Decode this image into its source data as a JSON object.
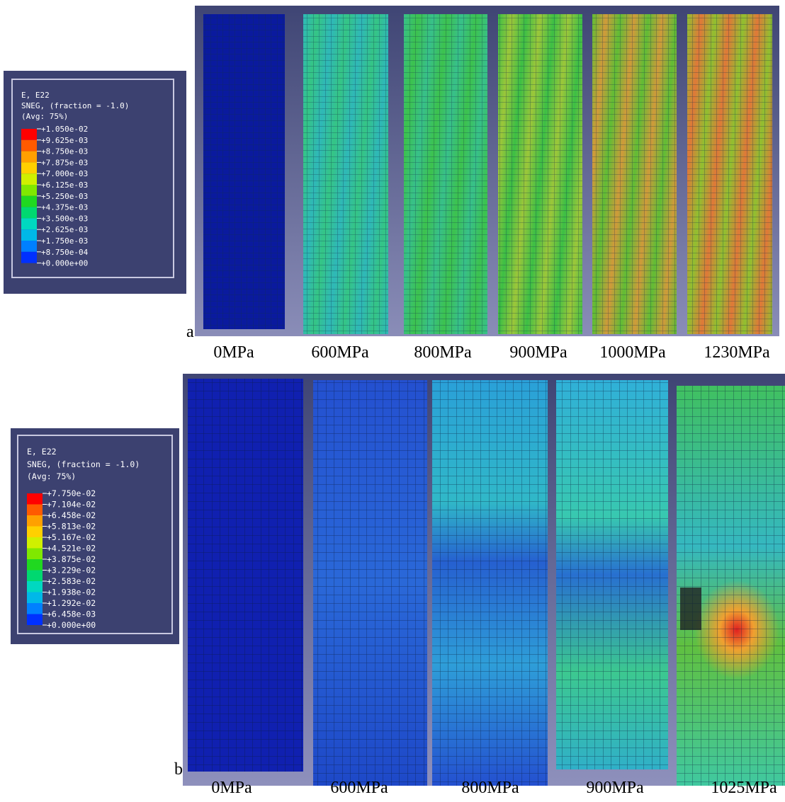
{
  "panels": [
    {
      "label": "a",
      "legend": {
        "title": [
          "E, E22",
          "SNEG, (fraction = -1.0)",
          "(Avg: 75%)"
        ],
        "values": [
          "+1.050e-02",
          "+9.625e-03",
          "+8.750e-03",
          "+7.875e-03",
          "+7.000e-03",
          "+6.125e-03",
          "+5.250e-03",
          "+4.375e-03",
          "+3.500e-03",
          "+2.625e-03",
          "+1.750e-03",
          "+8.750e-04",
          "+0.000e+00"
        ]
      },
      "captions": [
        "0MPa",
        "600MPa",
        "800MPa",
        "900MPa",
        "1000MPa",
        "1230MPa"
      ]
    },
    {
      "label": "b",
      "legend": {
        "title": [
          "E, E22",
          "SNEG, (fraction = -1.0)",
          "(Avg: 75%)"
        ],
        "values": [
          "+7.750e-02",
          "+7.104e-02",
          "+6.458e-02",
          "+5.813e-02",
          "+5.167e-02",
          "+4.521e-02",
          "+3.875e-02",
          "+3.229e-02",
          "+2.583e-02",
          "+1.938e-02",
          "+1.292e-02",
          "+6.458e-03",
          "+0.000e+00"
        ]
      },
      "captions": [
        "0MPa",
        "600MPa",
        "800MPa",
        "900MPa",
        "1025MPa"
      ]
    }
  ]
}
